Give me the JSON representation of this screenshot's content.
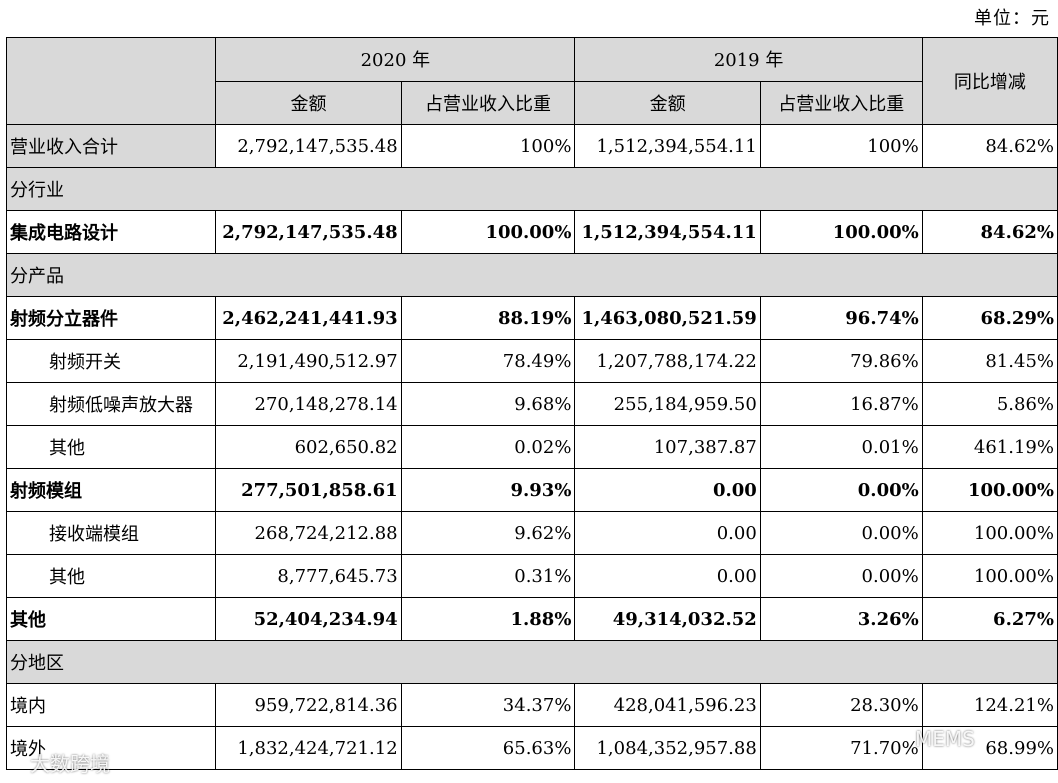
{
  "unit_label": "单位：元",
  "header": {
    "year_2020": "2020 年",
    "year_2019": "2019 年",
    "yoy": "同比增减",
    "amount": "金额",
    "ratio": "占营业收入比重"
  },
  "rows": [
    {
      "label": "营业收入合计",
      "a2020": "2,792,147,535.48",
      "r2020": "100%",
      "a2019": "1,512,394,554.11",
      "r2019": "100%",
      "yoy": "84.62%"
    },
    {
      "label": "分行业"
    },
    {
      "label": "集成电路设计",
      "a2020": "2,792,147,535.48",
      "r2020": "100.00%",
      "a2019": "1,512,394,554.11",
      "r2019": "100.00%",
      "yoy": "84.62%"
    },
    {
      "label": "分产品"
    },
    {
      "label": "射频分立器件",
      "a2020": "2,462,241,441.93",
      "r2020": "88.19%",
      "a2019": "1,463,080,521.59",
      "r2019": "96.74%",
      "yoy": "68.29%"
    },
    {
      "label": "射频开关",
      "a2020": "2,191,490,512.97",
      "r2020": "78.49%",
      "a2019": "1,207,788,174.22",
      "r2019": "79.86%",
      "yoy": "81.45%"
    },
    {
      "label": "射频低噪声放大器",
      "a2020": "270,148,278.14",
      "r2020": "9.68%",
      "a2019": "255,184,959.50",
      "r2019": "16.87%",
      "yoy": "5.86%"
    },
    {
      "label": "其他",
      "a2020": "602,650.82",
      "r2020": "0.02%",
      "a2019": "107,387.87",
      "r2019": "0.01%",
      "yoy": "461.19%"
    },
    {
      "label": "射频模组",
      "a2020": "277,501,858.61",
      "r2020": "9.93%",
      "a2019": "0.00",
      "r2019": "0.00%",
      "yoy": "100.00%"
    },
    {
      "label": "接收端模组",
      "a2020": "268,724,212.88",
      "r2020": "9.62%",
      "a2019": "0.00",
      "r2019": "0.00%",
      "yoy": "100.00%"
    },
    {
      "label": "其他",
      "a2020": "8,777,645.73",
      "r2020": "0.31%",
      "a2019": "0.00",
      "r2019": "0.00%",
      "yoy": "100.00%"
    },
    {
      "label": "其他",
      "a2020": "52,404,234.94",
      "r2020": "1.88%",
      "a2019": "49,314,032.52",
      "r2019": "3.26%",
      "yoy": "6.27%"
    },
    {
      "label": "分地区"
    },
    {
      "label": "境内",
      "a2020": "959,722,814.36",
      "r2020": "34.37%",
      "a2019": "428,041,596.23",
      "r2019": "28.30%",
      "yoy": "124.21%"
    },
    {
      "label": "境外",
      "a2020": "1,832,424,721.12",
      "r2020": "65.63%",
      "a2019": "1,084,352,957.88",
      "r2019": "71.70%",
      "yoy": "68.99%"
    }
  ],
  "watermarks": {
    "left": "大数跨境",
    "right": "MEMS"
  }
}
